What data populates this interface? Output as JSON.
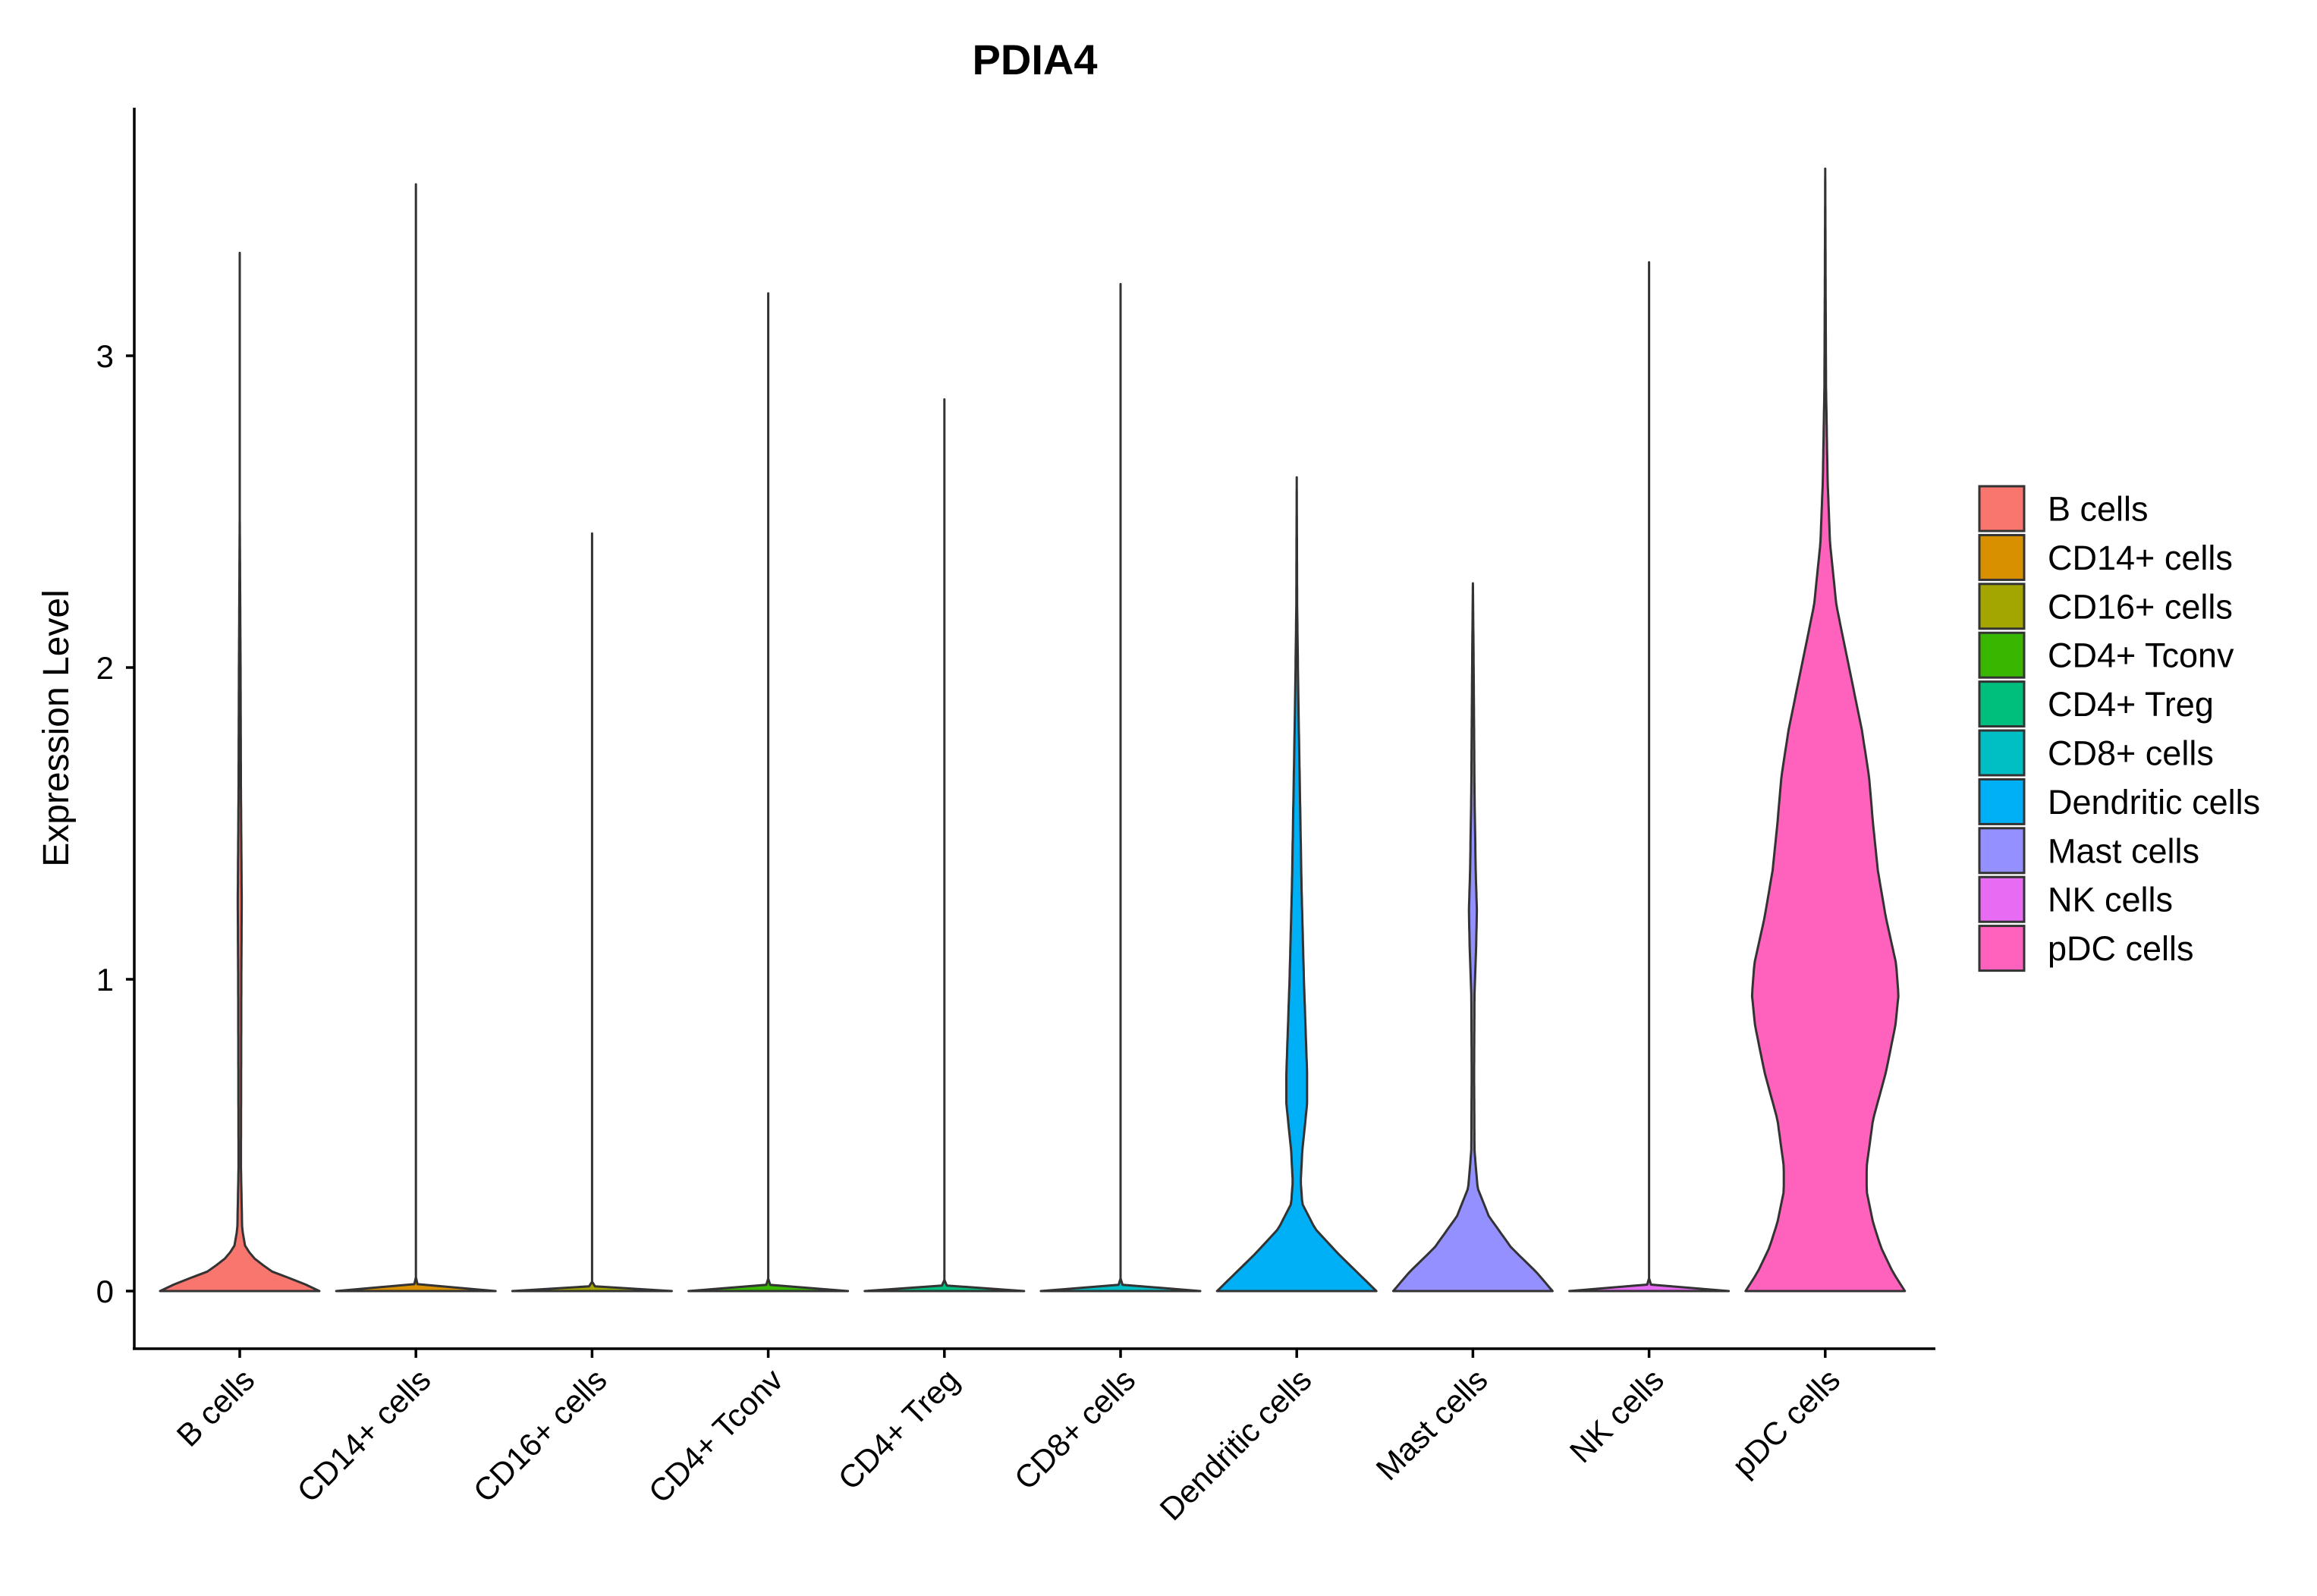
{
  "chart_data": {
    "type": "violin",
    "title": "PDIA4",
    "xlabel": "",
    "ylabel": "Expression Level",
    "ylim": [
      -0.18,
      3.8
    ],
    "yticks": [
      0,
      1,
      2,
      3
    ],
    "grid": false,
    "legend_position": "right",
    "categories": [
      "B cells",
      "CD14+ cells",
      "CD16+ cells",
      "CD4+ Tconv",
      "CD4+ Treg",
      "CD8+ cells",
      "Dendritic cells",
      "Mast cells",
      "NK cells",
      "pDC cells"
    ],
    "series": [
      {
        "name": "B cells",
        "color": "#F8766D",
        "max": 3.33,
        "profile": [
          [
            0,
            1.0
          ],
          [
            0.03,
            0.75
          ],
          [
            0.06,
            0.42
          ],
          [
            0.1,
            0.2
          ],
          [
            0.14,
            0.07
          ],
          [
            0.2,
            0.03
          ],
          [
            0.4,
            0.015
          ],
          [
            1.0,
            0.02
          ],
          [
            1.25,
            0.025
          ],
          [
            1.6,
            0.015
          ],
          [
            2.0,
            0.01
          ],
          [
            2.5,
            0.0
          ],
          [
            3.33,
            0.0
          ]
        ]
      },
      {
        "name": "CD14+ cells",
        "color": "#D89000",
        "max": 3.55,
        "profile": [
          [
            0,
            1.0
          ],
          [
            0.004,
            0.4
          ],
          [
            0.01,
            0.05
          ],
          [
            0.03,
            0.0
          ],
          [
            3.55,
            0.0
          ]
        ]
      },
      {
        "name": "CD16+ cells",
        "color": "#A3A500",
        "max": 2.43,
        "profile": [
          [
            0,
            1.0
          ],
          [
            0.004,
            0.4
          ],
          [
            0.01,
            0.05
          ],
          [
            0.03,
            0.0
          ],
          [
            2.43,
            0.0
          ]
        ]
      },
      {
        "name": "CD4+ Tconv",
        "color": "#39B600",
        "max": 3.2,
        "profile": [
          [
            0,
            1.0
          ],
          [
            0.004,
            0.4
          ],
          [
            0.01,
            0.05
          ],
          [
            0.03,
            0.0
          ],
          [
            3.2,
            0.0
          ]
        ]
      },
      {
        "name": "CD4+ Treg",
        "color": "#00BF7D",
        "max": 2.86,
        "profile": [
          [
            0,
            1.0
          ],
          [
            0.004,
            0.4
          ],
          [
            0.01,
            0.05
          ],
          [
            0.03,
            0.0
          ],
          [
            2.86,
            0.0
          ]
        ]
      },
      {
        "name": "CD8+ cells",
        "color": "#00BFC4",
        "max": 3.23,
        "profile": [
          [
            0,
            1.0
          ],
          [
            0.004,
            0.4
          ],
          [
            0.01,
            0.05
          ],
          [
            0.03,
            0.0
          ],
          [
            3.23,
            0.0
          ]
        ]
      },
      {
        "name": "Dendritic cells",
        "color": "#00B0F6",
        "max": 2.61,
        "profile": [
          [
            0,
            1.0
          ],
          [
            0.05,
            0.8
          ],
          [
            0.12,
            0.52
          ],
          [
            0.2,
            0.23
          ],
          [
            0.28,
            0.07
          ],
          [
            0.35,
            0.05
          ],
          [
            0.45,
            0.07
          ],
          [
            0.6,
            0.13
          ],
          [
            0.7,
            0.13
          ],
          [
            0.85,
            0.11
          ],
          [
            1.0,
            0.09
          ],
          [
            1.3,
            0.06
          ],
          [
            1.6,
            0.04
          ],
          [
            1.9,
            0.02
          ],
          [
            2.2,
            0.005
          ],
          [
            2.61,
            0.0
          ]
        ]
      },
      {
        "name": "Mast cells",
        "color": "#9590FF",
        "max": 2.27,
        "profile": [
          [
            0,
            1.0
          ],
          [
            0.06,
            0.8
          ],
          [
            0.14,
            0.48
          ],
          [
            0.24,
            0.2
          ],
          [
            0.33,
            0.06
          ],
          [
            0.45,
            0.02
          ],
          [
            0.7,
            0.015
          ],
          [
            0.95,
            0.02
          ],
          [
            1.1,
            0.04
          ],
          [
            1.22,
            0.05
          ],
          [
            1.35,
            0.035
          ],
          [
            1.6,
            0.02
          ],
          [
            1.8,
            0.015
          ],
          [
            2.05,
            0.008
          ],
          [
            2.27,
            0.0
          ]
        ]
      },
      {
        "name": "NK cells",
        "color": "#E76BF3",
        "max": 3.3,
        "profile": [
          [
            0,
            1.0
          ],
          [
            0.004,
            0.4
          ],
          [
            0.01,
            0.05
          ],
          [
            0.03,
            0.0
          ],
          [
            3.3,
            0.0
          ]
        ]
      },
      {
        "name": "pDC cells",
        "color": "#FF62BC",
        "max": 3.6,
        "profile": [
          [
            0,
            1.0
          ],
          [
            0.06,
            0.85
          ],
          [
            0.14,
            0.7
          ],
          [
            0.22,
            0.6
          ],
          [
            0.32,
            0.52
          ],
          [
            0.4,
            0.52
          ],
          [
            0.55,
            0.6
          ],
          [
            0.7,
            0.76
          ],
          [
            0.85,
            0.88
          ],
          [
            0.95,
            0.92
          ],
          [
            1.05,
            0.89
          ],
          [
            1.2,
            0.76
          ],
          [
            1.35,
            0.66
          ],
          [
            1.5,
            0.6
          ],
          [
            1.65,
            0.55
          ],
          [
            1.8,
            0.46
          ],
          [
            2.0,
            0.3
          ],
          [
            2.2,
            0.14
          ],
          [
            2.4,
            0.06
          ],
          [
            2.6,
            0.03
          ],
          [
            2.9,
            0.01
          ],
          [
            3.2,
            0.005
          ],
          [
            3.6,
            0.0
          ]
        ]
      }
    ]
  }
}
